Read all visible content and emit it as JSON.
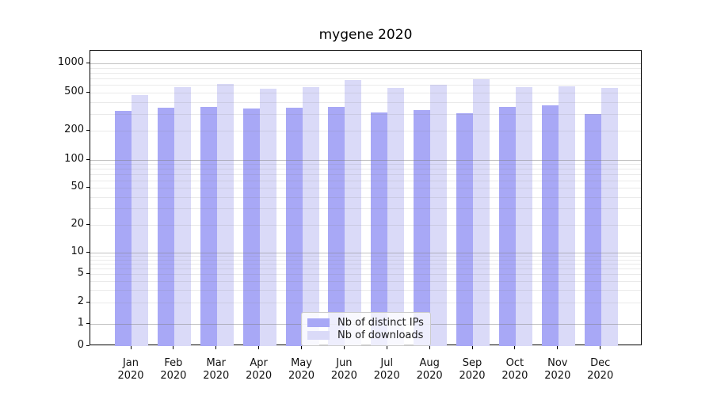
{
  "chart_data": {
    "type": "bar",
    "title": "mygene 2020",
    "categories": [
      "Jan",
      "Feb",
      "Mar",
      "Apr",
      "May",
      "Jun",
      "Jul",
      "Aug",
      "Sep",
      "Oct",
      "Nov",
      "Dec"
    ],
    "year_label": "2020",
    "series": [
      {
        "name": "Nb of distinct IPs",
        "color": "#a8a8f6",
        "values": [
          323,
          347,
          357,
          343,
          349,
          352,
          308,
          329,
          304,
          351,
          368,
          301
        ]
      },
      {
        "name": "Nb of downloads",
        "color": "#dadaf8",
        "values": [
          471,
          571,
          610,
          549,
          571,
          669,
          556,
          601,
          691,
          567,
          578,
          556
        ]
      }
    ],
    "yscale": "symlog",
    "yticks": [
      0,
      1,
      2,
      5,
      10,
      20,
      50,
      100,
      200,
      500,
      1000
    ],
    "ylim": [
      0,
      1380
    ],
    "xlabel": "",
    "ylabel": "",
    "grid": true,
    "legend_position": "lower center"
  }
}
